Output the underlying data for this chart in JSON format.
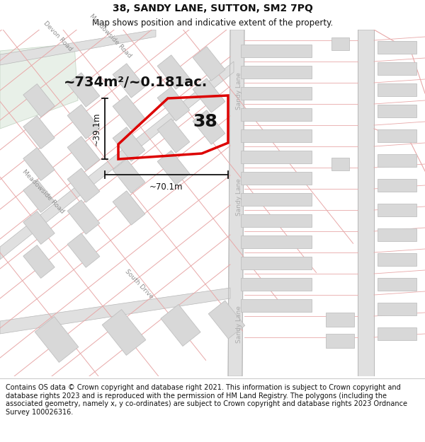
{
  "title": "38, SANDY LANE, SUTTON, SM2 7PQ",
  "subtitle": "Map shows position and indicative extent of the property.",
  "footer": "Contains OS data © Crown copyright and database right 2021. This information is subject to Crown copyright and database rights 2023 and is reproduced with the permission of HM Land Registry. The polygons (including the associated geometry, namely x, y co-ordinates) are subject to Crown copyright and database rights 2023 Ordnance Survey 100026316.",
  "title_fontsize": 10,
  "subtitle_fontsize": 8.5,
  "footer_fontsize": 7.0,
  "area_text": "~734m²/~0.181ac.",
  "dim_width_text": "~70.1m",
  "dim_height_text": "~39.1m",
  "map_bg": "#f8f8f8",
  "header_bg": "#ffffff",
  "footer_bg": "#ffffff",
  "red_color": "#dd0000",
  "road_fill": "#e0e0e0",
  "road_edge": "#b8b8b8",
  "cadastral_line": "#e8a8a8",
  "building_fill": "#d8d8d8",
  "building_edge": "#c0c0c0",
  "green_fill": "#e8f0e8",
  "green_edge": "#c8d8c8",
  "road_label_color": "#909090",
  "text_color": "#111111",
  "dim_line_color": "#111111",
  "sandy_label_color": "#aaaaaa"
}
